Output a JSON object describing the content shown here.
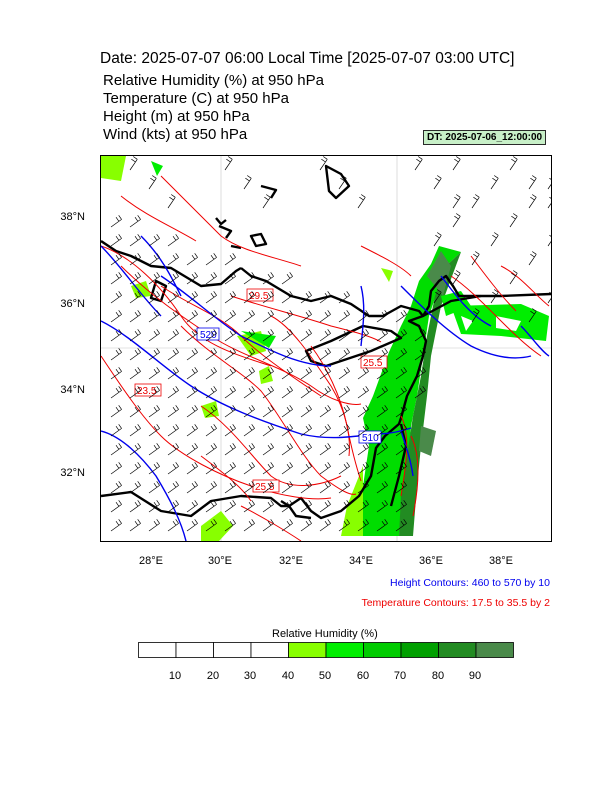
{
  "header": {
    "title": "Date: 2025-07-07  06:00 Local Time [2025-07-07  03:00 UTC]",
    "lines": [
      "Relative Humidity   (%)     at   950 hPa",
      "Temperature   (C)     at   950 hPa",
      "Height   (m)     at   950 hPa",
      "Wind   (kts)     at   950 hPa"
    ],
    "dt_badge": "DT: 2025-07-06_12:00:00"
  },
  "axes": {
    "lat_labels": [
      "38°N",
      "36°N",
      "34°N",
      "32°N"
    ],
    "lon_labels": [
      "28°E",
      "30°E",
      "32°E",
      "34°E",
      "36°E",
      "38°E"
    ]
  },
  "contour_labels": {
    "height": [
      "520",
      "510"
    ],
    "temperature": [
      "23.5",
      "29.5",
      "25.5",
      "25.5"
    ]
  },
  "legend": {
    "height": "Height Contours: 460 to 570 by 10",
    "temperature": "Temperature Contours: 17.5 to 35.5 by 2",
    "height_color": "#0000ee",
    "temperature_color": "#ee0000"
  },
  "colorbar": {
    "title": "Relative Humidity  (%)",
    "labels": [
      "10",
      "20",
      "30",
      "40",
      "50",
      "60",
      "70",
      "80",
      "90"
    ],
    "colors": [
      "#ffffff",
      "#ffffff",
      "#ffffff",
      "#ffffff",
      "#88ff00",
      "#00ee00",
      "#00cc00",
      "#00a000",
      "#228b22",
      "#4a8a4a"
    ]
  }
}
